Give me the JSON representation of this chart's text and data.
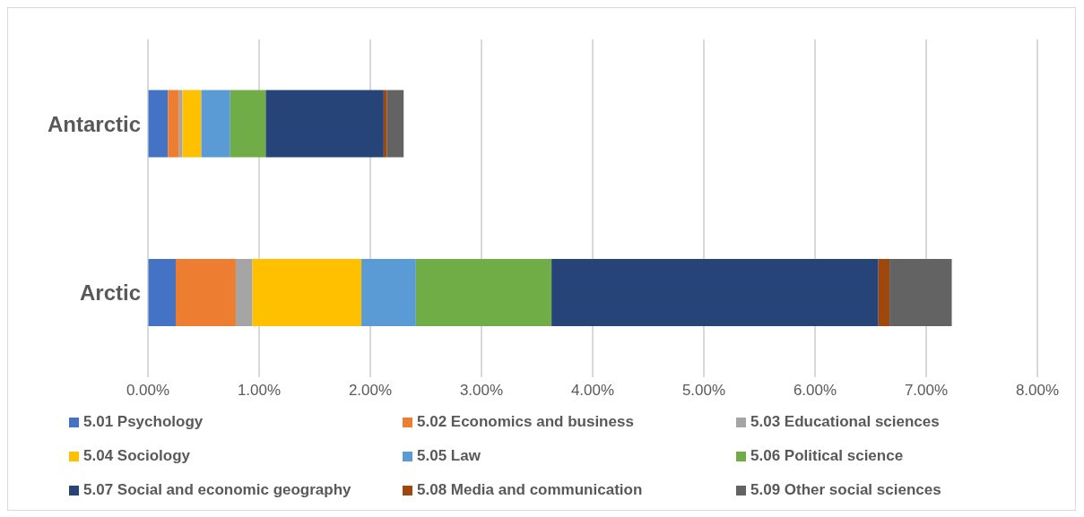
{
  "chart_data": {
    "type": "bar",
    "orientation": "horizontal",
    "stacked": true,
    "categories": [
      "Antarctic",
      "Arctic"
    ],
    "series": [
      {
        "name": "5.01 Psychology",
        "color": "#4472c4",
        "values": [
          0.18,
          0.25
        ]
      },
      {
        "name": "5.02 Economics and business",
        "color": "#ed7d31",
        "values": [
          0.1,
          0.54
        ]
      },
      {
        "name": "5.03 Educational sciences",
        "color": "#a5a5a5",
        "values": [
          0.03,
          0.15
        ]
      },
      {
        "name": "5.04 Sociology",
        "color": "#ffc000",
        "values": [
          0.17,
          0.98
        ]
      },
      {
        "name": "5.05 Law",
        "color": "#5b9bd5",
        "values": [
          0.26,
          0.49
        ]
      },
      {
        "name": "5.06 Political science",
        "color": "#70ad47",
        "values": [
          0.32,
          1.22
        ]
      },
      {
        "name": "5.07 Social and economic geography",
        "color": "#264478",
        "values": [
          1.06,
          2.94
        ]
      },
      {
        "name": "5.08 Media and communication",
        "color": "#9e480e",
        "values": [
          0.03,
          0.1
        ]
      },
      {
        "name": "5.09 Other social sciences",
        "color": "#636363",
        "values": [
          0.15,
          0.56
        ]
      }
    ],
    "xlim": [
      0,
      8
    ],
    "xticks": [
      {
        "value": 0,
        "label": "0.00%"
      },
      {
        "value": 1,
        "label": "1.00%"
      },
      {
        "value": 2,
        "label": "2.00%"
      },
      {
        "value": 3,
        "label": "3.00%"
      },
      {
        "value": 4,
        "label": "4.00%"
      },
      {
        "value": 5,
        "label": "5.00%"
      },
      {
        "value": 6,
        "label": "6.00%"
      },
      {
        "value": 7,
        "label": "7.00%"
      },
      {
        "value": 8,
        "label": "8.00%"
      }
    ],
    "grid": "x",
    "legend": "bottom"
  }
}
